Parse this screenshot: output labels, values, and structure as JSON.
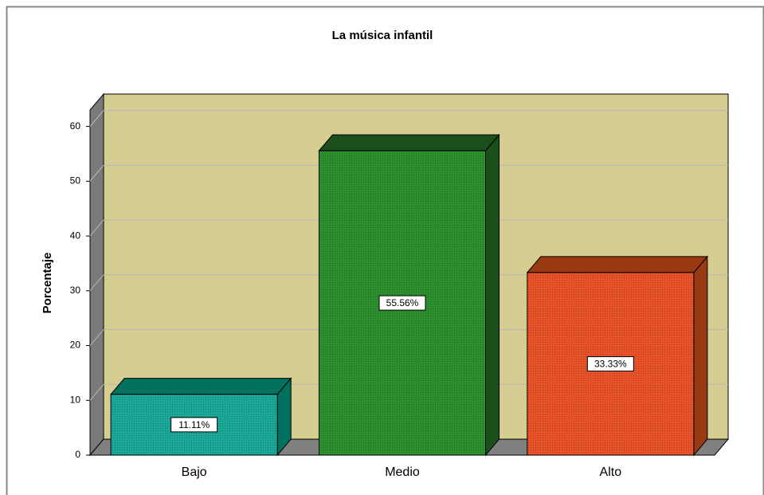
{
  "chart_data": {
    "type": "bar3d",
    "title": "La música infantil",
    "ylabel": "Porcentaje",
    "categories": [
      "Bajo",
      "Medio",
      "Alto"
    ],
    "values": [
      11.11,
      55.56,
      33.33
    ],
    "value_labels": [
      "11.11%",
      "55.56%",
      "33.33%"
    ],
    "colors": [
      "#1aa898",
      "#2e8f2e",
      "#e8532a"
    ],
    "top_colors": [
      "#00705f",
      "#1b4f1b",
      "#9a3a12"
    ],
    "ylim": [
      0,
      63
    ],
    "yticks": [
      0,
      10,
      20,
      30,
      40,
      50,
      60
    ],
    "grid": true
  }
}
